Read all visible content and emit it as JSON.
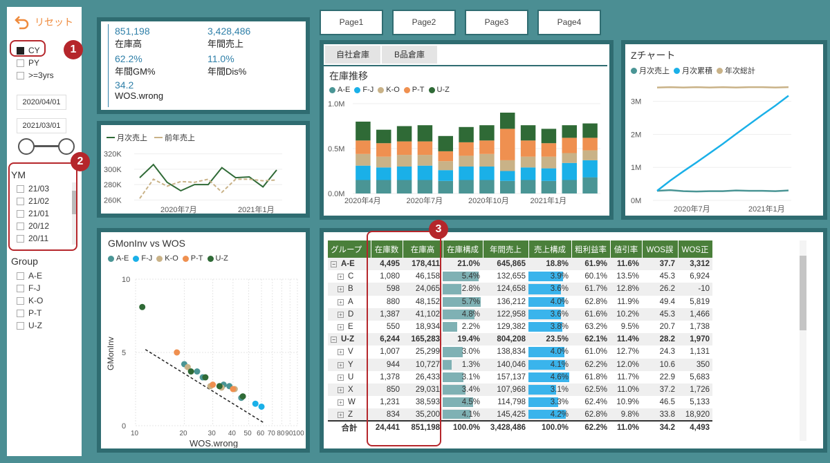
{
  "reset": {
    "label": "リセット"
  },
  "period": [
    {
      "label": "CY",
      "checked": true
    },
    {
      "label": "PY",
      "checked": false
    },
    {
      "label": ">=3yrs",
      "checked": false
    }
  ],
  "dates": {
    "start": "2020/04/01",
    "end": "2021/03/01"
  },
  "ym": {
    "title": "YM",
    "items": [
      "21/03",
      "21/02",
      "21/01",
      "20/12",
      "20/11"
    ]
  },
  "group": {
    "title": "Group",
    "items": [
      "A-E",
      "F-J",
      "K-O",
      "P-T",
      "U-Z"
    ]
  },
  "kpi": [
    {
      "value": "851,198",
      "label": "在庫高"
    },
    {
      "value": "3,428,486",
      "label": "年間売上"
    },
    {
      "value": "62.2%",
      "label": "年間GM%"
    },
    {
      "value": "11.0%",
      "label": "年間Dis%"
    },
    {
      "value": "34.2",
      "label": "WOS.wrong"
    }
  ],
  "pages": [
    "Page1",
    "Page2",
    "Page3",
    "Page4"
  ],
  "warehouse_tabs": [
    "自社倉庫",
    "B品倉庫"
  ],
  "badges": [
    "1",
    "2",
    "3"
  ],
  "colors": {
    "ae": "#4a9595",
    "fj": "#1ab0e8",
    "ko": "#c9b287",
    "pt": "#ef9050",
    "uz": "#2f6a36",
    "monthly": "#2f6a36",
    "prev": "#c9b287"
  },
  "line_chart": {
    "legend": [
      "月次売上",
      "前年売上"
    ],
    "yticks": [
      "320K",
      "300K",
      "280K",
      "260K"
    ],
    "xticks": [
      "2020年7月",
      "2021年1月"
    ]
  },
  "stock_chart": {
    "title": "在庫推移",
    "legend": [
      "A-E",
      "F-J",
      "K-O",
      "P-T",
      "U-Z"
    ],
    "yticks": [
      "1.0M",
      "0.5M",
      "0.0M"
    ],
    "xticks": [
      "2020年4月",
      "2020年7月",
      "2020年10月",
      "2021年1月"
    ]
  },
  "z_chart": {
    "title": "Zチャート",
    "legend": [
      "月次売上",
      "月次累積",
      "年次総計"
    ],
    "yticks": [
      "3M",
      "2M",
      "1M",
      "0M"
    ],
    "xticks": [
      "2020年7月",
      "2021年1月"
    ]
  },
  "scatter": {
    "title": "GMonInv vs WOS",
    "legend": [
      "A-E",
      "F-J",
      "K-O",
      "P-T",
      "U-Z"
    ],
    "ylabel": "GMonInv",
    "xlabel": "WOS.wrong",
    "yticks": [
      "10",
      "5",
      "0"
    ],
    "xticks": [
      "10",
      "20",
      "30",
      "40",
      "50",
      "60",
      "70",
      "80",
      "90",
      "100"
    ]
  },
  "table": {
    "headers": [
      "グループ",
      "在庫数",
      "在庫高",
      "在庫構成",
      "年間売上",
      "売上構成",
      "粗利益率",
      "値引率",
      "WOS誤",
      "WOS正"
    ],
    "rows": [
      {
        "lvl": 0,
        "name": "A-E",
        "cells": [
          "4,495",
          "178,411",
          "21.0%",
          "645,865",
          "18.8%",
          "61.9%",
          "11.6%",
          "37.7",
          "3,312"
        ],
        "inv": 0,
        "sal": 0
      },
      {
        "lvl": 1,
        "name": "C",
        "cells": [
          "1,080",
          "46,158",
          "5.4%",
          "132,655",
          "3.9%",
          "60.1%",
          "13.5%",
          "45.3",
          "6,924"
        ],
        "inv": 5.4,
        "sal": 3.9
      },
      {
        "lvl": 1,
        "name": "B",
        "cells": [
          "598",
          "24,065",
          "2.8%",
          "124,658",
          "3.6%",
          "61.7%",
          "12.8%",
          "26.2",
          "-10"
        ],
        "inv": 2.8,
        "sal": 3.6
      },
      {
        "lvl": 1,
        "name": "A",
        "cells": [
          "880",
          "48,152",
          "5.7%",
          "136,212",
          "4.0%",
          "62.8%",
          "11.9%",
          "49.4",
          "5,819"
        ],
        "inv": 5.7,
        "sal": 4.0
      },
      {
        "lvl": 1,
        "name": "D",
        "cells": [
          "1,387",
          "41,102",
          "4.8%",
          "122,958",
          "3.6%",
          "61.6%",
          "10.2%",
          "45.3",
          "1,466"
        ],
        "inv": 4.8,
        "sal": 3.6
      },
      {
        "lvl": 1,
        "name": "E",
        "cells": [
          "550",
          "18,934",
          "2.2%",
          "129,382",
          "3.8%",
          "63.2%",
          "9.5%",
          "20.7",
          "1,738"
        ],
        "inv": 2.2,
        "sal": 3.8
      },
      {
        "lvl": 0,
        "name": "U-Z",
        "cells": [
          "6,244",
          "165,283",
          "19.4%",
          "804,208",
          "23.5%",
          "62.1%",
          "11.4%",
          "28.2",
          "1,970"
        ],
        "inv": 0,
        "sal": 0
      },
      {
        "lvl": 1,
        "name": "V",
        "cells": [
          "1,007",
          "25,299",
          "3.0%",
          "138,834",
          "4.0%",
          "61.0%",
          "12.7%",
          "24.3",
          "1,131"
        ],
        "inv": 3.0,
        "sal": 4.0
      },
      {
        "lvl": 1,
        "name": "Y",
        "cells": [
          "944",
          "10,727",
          "1.3%",
          "140,046",
          "4.1%",
          "62.2%",
          "12.0%",
          "10.6",
          "350"
        ],
        "inv": 1.3,
        "sal": 4.1
      },
      {
        "lvl": 1,
        "name": "U",
        "cells": [
          "1,378",
          "26,433",
          "3.1%",
          "157,137",
          "4.6%",
          "61.8%",
          "11.7%",
          "22.9",
          "5,683"
        ],
        "inv": 3.1,
        "sal": 4.6
      },
      {
        "lvl": 1,
        "name": "X",
        "cells": [
          "850",
          "29,031",
          "3.4%",
          "107,968",
          "3.1%",
          "62.5%",
          "11.0%",
          "37.2",
          "1,726"
        ],
        "inv": 3.4,
        "sal": 3.1
      },
      {
        "lvl": 1,
        "name": "W",
        "cells": [
          "1,231",
          "38,593",
          "4.5%",
          "114,798",
          "3.3%",
          "62.4%",
          "10.9%",
          "46.5",
          "5,133"
        ],
        "inv": 4.5,
        "sal": 3.3
      },
      {
        "lvl": 1,
        "name": "Z",
        "cells": [
          "834",
          "35,200",
          "4.1%",
          "145,425",
          "4.2%",
          "62.8%",
          "9.8%",
          "33.8",
          "18,920"
        ],
        "inv": 4.1,
        "sal": 4.2
      }
    ],
    "total": {
      "name": "合計",
      "cells": [
        "24,441",
        "851,198",
        "100.0%",
        "3,428,486",
        "100.0%",
        "62.2%",
        "11.0%",
        "34.2",
        "4,493"
      ]
    }
  },
  "chart_data": [
    {
      "type": "line",
      "title": "",
      "series": [
        {
          "name": "月次売上",
          "values": [
            289,
            306,
            283,
            272,
            280,
            280,
            302,
            289,
            290,
            277,
            299
          ]
        },
        {
          "name": "前年売上",
          "values": [
            262,
            287,
            278,
            284,
            283,
            287,
            270,
            287,
            287,
            285,
            286
          ]
        }
      ],
      "ylim": [
        255,
        325
      ],
      "xticks": [
        "2020年7月",
        "2021年1月"
      ]
    },
    {
      "type": "bar",
      "title": "在庫推移",
      "categories": [
        "2020-04",
        "2020-05",
        "2020-06",
        "2020-07",
        "2020-08",
        "2020-09",
        "2020-10",
        "2020-11",
        "2020-12",
        "2021-01",
        "2021-02",
        "2021-03"
      ],
      "series": [
        {
          "name": "A-E",
          "values": [
            0.15,
            0.15,
            0.15,
            0.15,
            0.14,
            0.15,
            0.15,
            0.14,
            0.15,
            0.14,
            0.15,
            0.18
          ]
        },
        {
          "name": "F-J",
          "values": [
            0.16,
            0.14,
            0.15,
            0.16,
            0.12,
            0.15,
            0.15,
            0.11,
            0.14,
            0.14,
            0.19,
            0.19
          ]
        },
        {
          "name": "K-O",
          "values": [
            0.13,
            0.12,
            0.13,
            0.12,
            0.1,
            0.12,
            0.14,
            0.12,
            0.12,
            0.13,
            0.11,
            0.11
          ]
        },
        {
          "name": "P-T",
          "values": [
            0.15,
            0.15,
            0.15,
            0.15,
            0.11,
            0.15,
            0.15,
            0.35,
            0.18,
            0.15,
            0.17,
            0.14
          ]
        },
        {
          "name": "U-Z",
          "values": [
            0.21,
            0.15,
            0.17,
            0.18,
            0.17,
            0.17,
            0.17,
            0.18,
            0.17,
            0.16,
            0.14,
            0.16
          ]
        }
      ],
      "ylim": [
        0,
        1.0
      ]
    },
    {
      "type": "line",
      "title": "Zチャート",
      "series": [
        {
          "name": "月次売上",
          "values": [
            0.29,
            0.31,
            0.28,
            0.27,
            0.28,
            0.28,
            0.3,
            0.29,
            0.29,
            0.28,
            0.3
          ]
        },
        {
          "name": "月次累積",
          "values": [
            0.29,
            0.6,
            0.88,
            1.15,
            1.43,
            1.71,
            2.01,
            2.3,
            2.59,
            2.87,
            3.17
          ]
        },
        {
          "name": "年次総計",
          "values": [
            3.42,
            3.43,
            3.42,
            3.43,
            3.42,
            3.43,
            3.42,
            3.43,
            3.43,
            3.42,
            3.43
          ]
        }
      ],
      "ylim": [
        0,
        3.6
      ]
    },
    {
      "type": "scatter",
      "title": "GMonInv vs WOS",
      "xscale": "log",
      "xlim": [
        10,
        100
      ],
      "ylim": [
        0,
        10
      ],
      "series": [
        {
          "name": "A-E",
          "points": [
            [
              20,
              4.2
            ],
            [
              24,
              3.7
            ],
            [
              26,
              3.3
            ],
            [
              35,
              2.8
            ],
            [
              38,
              2.7
            ],
            [
              45,
              1.9
            ]
          ]
        },
        {
          "name": "F-J",
          "points": [
            [
              55,
              1.5
            ],
            [
              60,
              1.3
            ]
          ]
        },
        {
          "name": "K-O",
          "points": [
            [
              21,
              4.0
            ],
            [
              29,
              2.7
            ],
            [
              34,
              2.6
            ],
            [
              41,
              2.5
            ]
          ]
        },
        {
          "name": "P-T",
          "points": [
            [
              18,
              5.0
            ],
            [
              30,
              2.8
            ],
            [
              40,
              2.5
            ]
          ]
        },
        {
          "name": "U-Z",
          "points": [
            [
              11,
              8.1
            ],
            [
              22,
              3.7
            ],
            [
              27,
              3.3
            ],
            [
              33,
              2.7
            ],
            [
              46,
              2.0
            ]
          ]
        }
      ]
    }
  ]
}
